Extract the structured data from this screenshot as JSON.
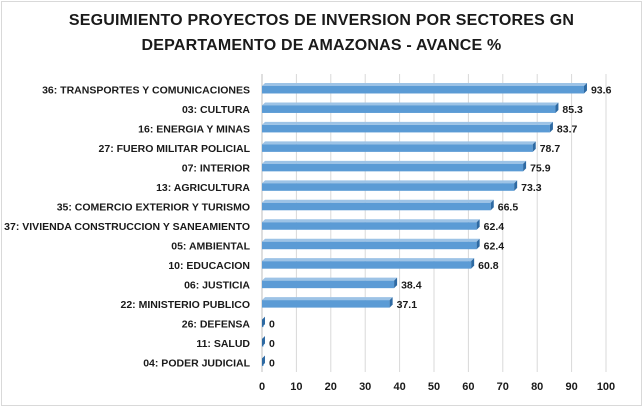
{
  "chart_data": {
    "type": "bar",
    "orientation": "horizontal",
    "title_lines": [
      "SEGUIMIENTO PROYECTOS DE INVERSION POR SECTORES GN",
      "DEPARTAMENTO DE AMAZONAS - AVANCE %"
    ],
    "categories": [
      "36: TRANSPORTES Y COMUNICACIONES",
      "03: CULTURA",
      "16: ENERGIA Y MINAS",
      "27: FUERO MILITAR POLICIAL",
      "07: INTERIOR",
      "13: AGRICULTURA",
      "35: COMERCIO EXTERIOR Y TURISMO",
      "37: VIVIENDA CONSTRUCCION Y SANEAMIENTO",
      "05: AMBIENTAL",
      "10: EDUCACION",
      "06: JUSTICIA",
      "22: MINISTERIO PUBLICO",
      "26: DEFENSA",
      "11: SALUD",
      "04: PODER JUDICIAL"
    ],
    "values": [
      93.6,
      85.3,
      83.7,
      78.7,
      75.9,
      73.3,
      66.5,
      62.4,
      62.4,
      60.8,
      38.4,
      37.1,
      0,
      0,
      0
    ],
    "value_labels": [
      "93.6",
      "85.3",
      "83.7",
      "78.7",
      "75.9",
      "73.3",
      "66.5",
      "62.4",
      "62.4",
      "60.8",
      "38.4",
      "37.1",
      "0",
      "0",
      "0"
    ],
    "xlim": [
      0,
      100
    ],
    "xticks": [
      0,
      10,
      20,
      30,
      40,
      50,
      60,
      70,
      80,
      90,
      100
    ],
    "grid": true,
    "legend": "none",
    "colors": {
      "bar_fill": "#5b9bd5",
      "bar_top": "#9dc3e6",
      "bar_side": "#2e6aa3",
      "grid": "#d9d9d9"
    }
  }
}
